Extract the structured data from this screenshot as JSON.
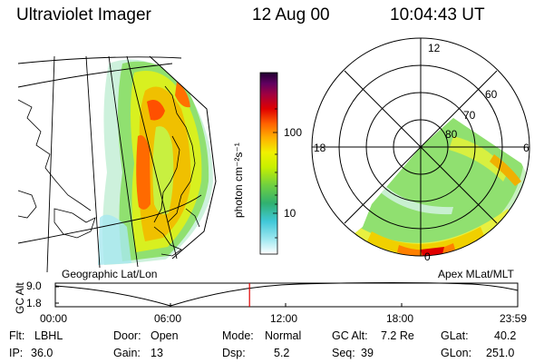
{
  "header": {
    "title": "Ultraviolet Imager",
    "date": "12 Aug 00",
    "time": "10:04:43 UT"
  },
  "colorbar": {
    "unit_label": "photon cm⁻²s⁻¹",
    "ticks": [
      "100",
      "10"
    ],
    "colors": [
      "#ffffff",
      "#a0e8f0",
      "#40c8d8",
      "#30b070",
      "#70d040",
      "#c8f000",
      "#f0f000",
      "#ffb000",
      "#ff6000",
      "#e00000",
      "#a00040",
      "#600060",
      "#200030"
    ]
  },
  "left_map": {
    "caption": "Geographic Lat/Lon"
  },
  "right_map": {
    "caption": "Apex MLat/MLT",
    "mlt_labels": {
      "top": "12",
      "left": "18",
      "right": "6",
      "bottom": "0"
    },
    "lat_labels": [
      "60",
      "70",
      "80"
    ]
  },
  "altitude_plot": {
    "ylabel": "GC Alt",
    "yticks": [
      "9.0",
      "1.8"
    ],
    "xticks": [
      "00:00",
      "06:00",
      "12:00",
      "18:00",
      "23:59"
    ],
    "current_marker_fraction": 0.42
  },
  "info": {
    "flt_label": "Flt:",
    "flt_value": "LBHL",
    "ip_label": "IP:",
    "ip_value": "36.0",
    "door_label": "Door:",
    "door_value": "Open",
    "gain_label": "Gain:",
    "gain_value": "13",
    "mode_label": "Mode:",
    "mode_value": "Normal",
    "dsp_label": "Dsp:",
    "dsp_value": "5.2",
    "gcalt_label": "GC Alt:",
    "gcalt_value": "7.2 Re",
    "seq_label": "Seq:",
    "seq_value": "39",
    "glat_label": "GLat:",
    "glat_value": "40.2",
    "glon_label": "GLon:",
    "glon_value": "251.0"
  }
}
